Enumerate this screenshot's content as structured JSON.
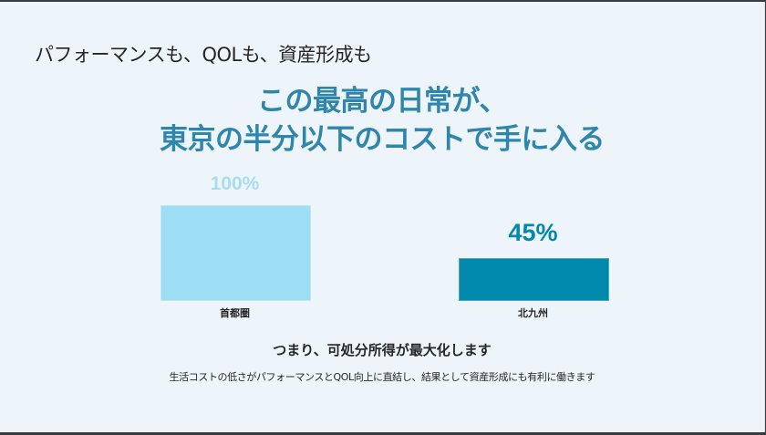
{
  "slide": {
    "heading": "パフォーマンスも、QOLも、資産形成も",
    "title_line1": "この最高の日常が、",
    "title_line2": "東京の半分以下のコストで手に入る",
    "summary": "つまり、可処分所得が最大化します",
    "subtext": "生活コストの低さがパフォーマンスとQOL向上に直結し、結果として資産形成にも有利に働きます"
  },
  "colors": {
    "background": "#eef5fa",
    "title": "#2f86ac",
    "bar_tokyo": "#9ddef4",
    "bar_kitakyushu": "#0088ad",
    "label_tokyo": "#a8dcef",
    "label_kitakyushu": "#0088ad"
  },
  "chart_data": {
    "type": "bar",
    "title": "",
    "categories": [
      "首都圏",
      "北九州"
    ],
    "values": [
      100,
      45
    ],
    "value_labels": [
      "100%",
      "45%"
    ],
    "xlabel": "",
    "ylabel": "",
    "ylim": [
      0,
      100
    ],
    "grid": false,
    "legend": null
  }
}
